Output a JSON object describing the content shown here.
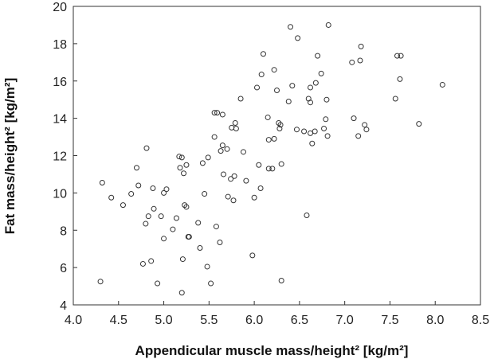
{
  "chart_data": {
    "type": "scatter",
    "title": "",
    "xlabel": "Appendicular muscle mass/height² [kg/m²]",
    "ylabel": "Fat mass/height² [kg/m²]",
    "xlim": [
      4.0,
      8.5
    ],
    "ylim": [
      4,
      20
    ],
    "xticks": [
      4.0,
      4.5,
      5.0,
      5.5,
      6.0,
      6.5,
      7.0,
      7.5,
      8.0,
      8.5
    ],
    "yticks": [
      4,
      6,
      8,
      10,
      12,
      14,
      16,
      18,
      20
    ],
    "xtick_labels": [
      "4.0",
      "4.5",
      "5.0",
      "5.5",
      "6.0",
      "6.5",
      "7.0",
      "7.5",
      "8.0",
      "8.5"
    ],
    "ytick_labels": [
      "4",
      "6",
      "8",
      "10",
      "12",
      "14",
      "16",
      "18",
      "20"
    ],
    "grid": false,
    "marker": "open-circle",
    "marker_color": "#333333",
    "axis_color": "#333333",
    "series": [
      {
        "x": [
          4.3,
          4.32,
          4.42,
          4.55,
          4.64,
          4.7,
          4.72,
          4.77,
          4.8,
          4.81,
          4.83,
          4.86,
          4.88,
          4.89,
          4.93,
          4.97,
          5.0,
          5.0,
          5.03,
          5.1,
          5.14,
          5.17,
          5.18,
          5.2,
          5.2,
          5.21,
          5.22,
          5.23,
          5.25,
          5.25,
          5.27,
          5.28,
          5.38,
          5.4,
          5.43,
          5.45,
          5.48,
          5.49,
          5.52,
          5.56,
          5.56,
          5.58,
          5.59,
          5.62,
          5.63,
          5.65,
          5.65,
          5.66,
          5.7,
          5.71,
          5.74,
          5.75,
          5.77,
          5.78,
          5.79,
          5.8,
          5.85,
          5.88,
          5.91,
          5.98,
          6.0,
          6.03,
          6.05,
          6.07,
          6.08,
          6.1,
          6.15,
          6.16,
          6.16,
          6.2,
          6.22,
          6.22,
          6.25,
          6.27,
          6.28,
          6.29,
          6.3,
          6.3,
          6.38,
          6.4,
          6.42,
          6.47,
          6.48,
          6.55,
          6.58,
          6.6,
          6.62,
          6.62,
          6.67,
          6.68,
          6.7,
          6.74,
          6.77,
          6.79,
          6.8,
          6.81,
          6.82,
          7.08,
          7.1,
          7.15,
          7.17,
          7.18,
          7.22,
          7.24,
          7.56,
          7.58,
          7.61,
          7.62,
          7.82,
          8.08,
          6.64,
          6.62
        ],
        "y": [
          5.25,
          10.55,
          9.75,
          9.35,
          9.95,
          11.35,
          10.4,
          6.2,
          8.35,
          12.4,
          8.75,
          6.35,
          10.25,
          9.15,
          5.15,
          8.75,
          7.55,
          10.0,
          10.2,
          8.05,
          8.65,
          11.95,
          11.35,
          11.9,
          4.65,
          6.45,
          11.05,
          9.35,
          11.5,
          9.25,
          7.65,
          7.65,
          8.4,
          7.05,
          11.6,
          9.95,
          6.05,
          11.9,
          5.15,
          13.0,
          14.3,
          8.2,
          14.3,
          7.35,
          12.25,
          12.55,
          14.2,
          11.0,
          12.35,
          9.8,
          10.75,
          13.5,
          9.6,
          10.9,
          13.75,
          13.45,
          15.05,
          12.2,
          10.65,
          6.65,
          9.75,
          15.65,
          11.5,
          10.25,
          16.35,
          17.45,
          14.05,
          12.85,
          11.3,
          11.3,
          12.9,
          16.6,
          15.5,
          13.75,
          13.45,
          13.65,
          11.55,
          5.3,
          14.9,
          18.9,
          15.75,
          13.4,
          18.3,
          13.3,
          8.8,
          15.05,
          15.65,
          14.85,
          13.3,
          15.9,
          17.35,
          16.4,
          13.45,
          13.95,
          15.0,
          13.05,
          19.0,
          17.0,
          14.0,
          13.05,
          17.1,
          17.85,
          13.65,
          13.4,
          15.05,
          17.35,
          16.1,
          17.35,
          13.7,
          15.8,
          12.65,
          13.2
        ]
      }
    ]
  }
}
